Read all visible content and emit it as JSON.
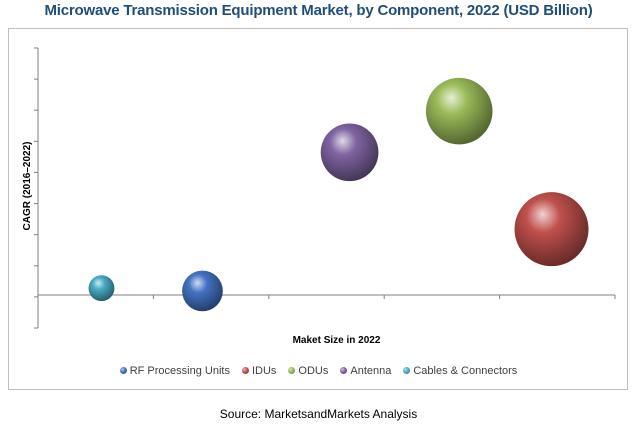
{
  "chart_data": {
    "type": "scatter",
    "subtype": "bubble",
    "title": "Microwave Transmission Equipment Market, by Component, 2022 (USD Billion)",
    "xlabel": "Maket Size in 2022",
    "ylabel": "CAGR (2016–2022)",
    "xlim": [
      0,
      10
    ],
    "ylim": [
      -1.2,
      9
    ],
    "grid": false,
    "legend": "bottom",
    "series": [
      {
        "name": "RF Processing Units",
        "x": 2.85,
        "y": 0.15,
        "size": 0.55,
        "color": "#4472c4"
      },
      {
        "name": "IDUs",
        "x": 8.9,
        "y": 2.4,
        "size": 1.0,
        "color": "#c0504d"
      },
      {
        "name": "ODUs",
        "x": 7.3,
        "y": 6.7,
        "size": 0.9,
        "color": "#9bbb59"
      },
      {
        "name": "Antenna",
        "x": 5.4,
        "y": 5.2,
        "size": 0.78,
        "color": "#8064a2"
      },
      {
        "name": "Cables & Connectors",
        "x": 1.1,
        "y": 0.25,
        "size": 0.35,
        "color": "#4bacc6"
      }
    ]
  },
  "source": "Source:  MarketsandMarkets Analysis"
}
